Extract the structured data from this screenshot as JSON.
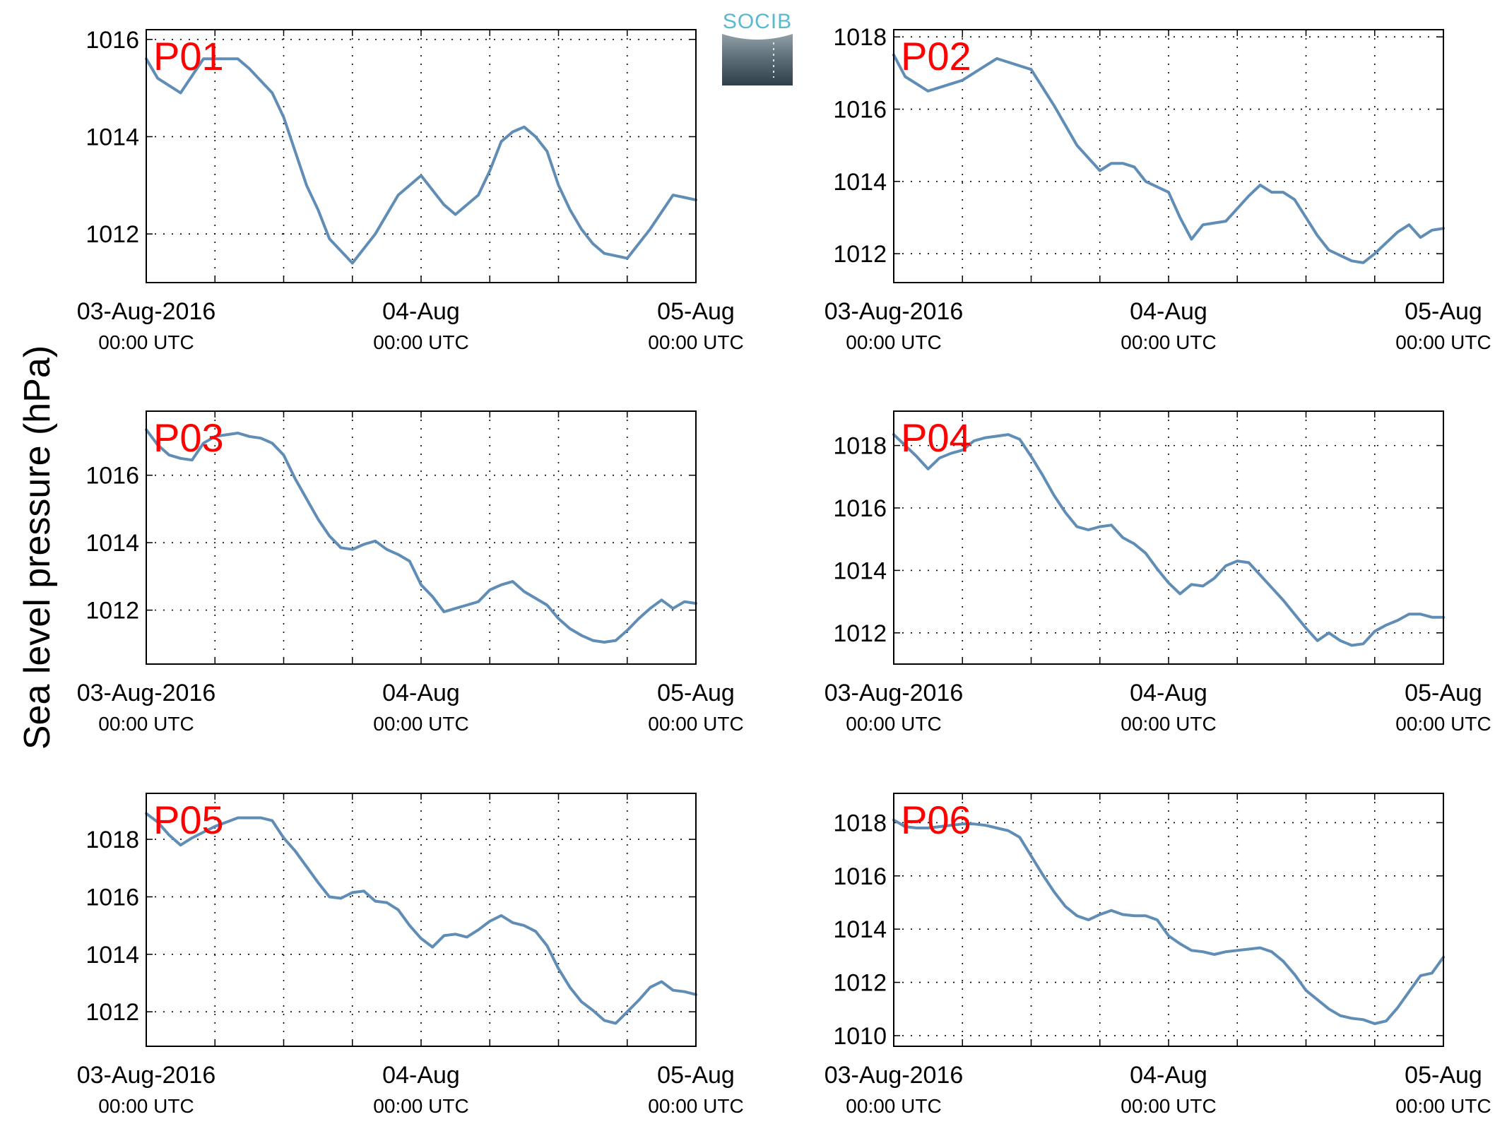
{
  "figure": {
    "ylabel": "Sea level pressure (hPa)",
    "logo_text": "SOCIB",
    "series_color": "#5f8db5",
    "label_color": "#ff0000"
  },
  "chart_data": [
    {
      "type": "line",
      "panel_label": "P01",
      "xlabel": "",
      "ylabel": "Sea level pressure (hPa)",
      "xlim": [
        "03-Aug-2016 00:00",
        "05-Aug-2016 00:00"
      ],
      "ylim": [
        1011,
        1016.2
      ],
      "yticks": [
        1012,
        1014,
        1016
      ],
      "xticks": [
        {
          "date": "03-Aug-2016",
          "time": "00:00 UTC"
        },
        {
          "date": "04-Aug",
          "time": "00:00 UTC"
        },
        {
          "date": "05-Aug",
          "time": "00:00 UTC"
        }
      ],
      "grid": true,
      "x_hours": [
        0,
        1,
        3,
        5,
        6,
        8,
        9,
        11,
        12,
        14,
        15,
        16,
        18,
        20,
        22,
        24,
        26,
        27,
        29,
        30,
        31,
        32,
        33,
        34,
        35,
        36,
        37,
        38,
        39,
        40,
        42,
        44,
        46,
        47,
        48
      ],
      "values": [
        1015.6,
        1015.2,
        1014.9,
        1015.6,
        1015.6,
        1015.6,
        1015.4,
        1014.9,
        1014.4,
        1013.0,
        1012.5,
        1011.9,
        1011.4,
        1012.0,
        1012.8,
        1013.2,
        1012.6,
        1012.4,
        1012.8,
        1013.3,
        1013.9,
        1014.1,
        1014.2,
        1014.0,
        1013.7,
        1013.0,
        1012.5,
        1012.1,
        1011.8,
        1011.6,
        1011.5,
        1012.1,
        1012.8,
        1012.75,
        1012.7
      ]
    },
    {
      "type": "line",
      "panel_label": "P02",
      "xlabel": "",
      "ylabel": "Sea level pressure (hPa)",
      "xlim": [
        "03-Aug-2016 00:00",
        "05-Aug-2016 00:00"
      ],
      "ylim": [
        1011.2,
        1018.2
      ],
      "yticks": [
        1012,
        1014,
        1016,
        1018
      ],
      "xticks": [
        {
          "date": "03-Aug-2016",
          "time": "00:00 UTC"
        },
        {
          "date": "04-Aug",
          "time": "00:00 UTC"
        },
        {
          "date": "05-Aug",
          "time": "00:00 UTC"
        }
      ],
      "grid": true,
      "x_hours": [
        0,
        1,
        3,
        5,
        6,
        8,
        9,
        10,
        12,
        14,
        16,
        18,
        19,
        20,
        21,
        22,
        24,
        25,
        26,
        27,
        28,
        29,
        31,
        32,
        33,
        34,
        35,
        36,
        37,
        38,
        40,
        41,
        42,
        43,
        44,
        45,
        46,
        47,
        48
      ],
      "values": [
        1017.5,
        1016.9,
        1016.5,
        1016.7,
        1016.8,
        1017.2,
        1017.4,
        1017.3,
        1017.1,
        1016.1,
        1015.0,
        1014.3,
        1014.5,
        1014.5,
        1014.4,
        1014.0,
        1013.7,
        1013.0,
        1012.4,
        1012.8,
        1012.85,
        1012.9,
        1013.6,
        1013.9,
        1013.7,
        1013.7,
        1013.5,
        1013.0,
        1012.5,
        1012.1,
        1011.8,
        1011.75,
        1012.0,
        1012.3,
        1012.6,
        1012.8,
        1012.45,
        1012.65,
        1012.7
      ]
    },
    {
      "type": "line",
      "panel_label": "P03",
      "xlabel": "",
      "ylabel": "Sea level pressure (hPa)",
      "xlim": [
        "03-Aug-2016 00:00",
        "05-Aug-2016 00:00"
      ],
      "ylim": [
        1010.4,
        1017.9
      ],
      "yticks": [
        1012,
        1014,
        1016
      ],
      "xticks": [
        {
          "date": "03-Aug-2016",
          "time": "00:00 UTC"
        },
        {
          "date": "04-Aug",
          "time": "00:00 UTC"
        },
        {
          "date": "05-Aug",
          "time": "00:00 UTC"
        }
      ],
      "grid": true,
      "x_hours": [
        0,
        1,
        2,
        3,
        4,
        5,
        6,
        7,
        8,
        9,
        10,
        11,
        12,
        13,
        14,
        15,
        16,
        17,
        18,
        19,
        20,
        21,
        22,
        23,
        24,
        25,
        26,
        27,
        28,
        29,
        30,
        31,
        32,
        33,
        34,
        35,
        36,
        37,
        38,
        39,
        40,
        41,
        42,
        43,
        44,
        45,
        46,
        47,
        48
      ],
      "values": [
        1017.35,
        1016.9,
        1016.6,
        1016.5,
        1016.45,
        1016.95,
        1017.15,
        1017.2,
        1017.25,
        1017.15,
        1017.1,
        1016.95,
        1016.6,
        1015.9,
        1015.3,
        1014.7,
        1014.2,
        1013.85,
        1013.8,
        1013.95,
        1014.05,
        1013.8,
        1013.65,
        1013.45,
        1012.75,
        1012.4,
        1011.95,
        1012.05,
        1012.15,
        1012.25,
        1012.6,
        1012.75,
        1012.85,
        1012.55,
        1012.35,
        1012.15,
        1011.75,
        1011.45,
        1011.25,
        1011.1,
        1011.05,
        1011.1,
        1011.4,
        1011.75,
        1012.05,
        1012.3,
        1012.05,
        1012.25,
        1012.2
      ]
    },
    {
      "type": "line",
      "panel_label": "P04",
      "xlabel": "",
      "ylabel": "Sea level pressure (hPa)",
      "xlim": [
        "03-Aug-2016 00:00",
        "05-Aug-2016 00:00"
      ],
      "ylim": [
        1011,
        1019.1
      ],
      "yticks": [
        1012,
        1014,
        1016,
        1018
      ],
      "xticks": [
        {
          "date": "03-Aug-2016",
          "time": "00:00 UTC"
        },
        {
          "date": "04-Aug",
          "time": "00:00 UTC"
        },
        {
          "date": "05-Aug",
          "time": "00:00 UTC"
        }
      ],
      "grid": true,
      "x_hours": [
        0,
        1,
        2,
        3,
        4,
        5,
        6,
        7,
        8,
        9,
        10,
        11,
        12,
        13,
        14,
        15,
        16,
        17,
        18,
        19,
        20,
        21,
        22,
        23,
        24,
        25,
        26,
        27,
        28,
        29,
        30,
        31,
        32,
        33,
        34,
        35,
        36,
        37,
        38,
        39,
        40,
        41,
        42,
        43,
        44,
        45,
        46,
        47,
        48
      ],
      "values": [
        1018.35,
        1018.0,
        1017.65,
        1017.25,
        1017.6,
        1017.75,
        1017.85,
        1018.15,
        1018.25,
        1018.3,
        1018.35,
        1018.2,
        1017.65,
        1017.05,
        1016.4,
        1015.85,
        1015.4,
        1015.3,
        1015.4,
        1015.45,
        1015.05,
        1014.85,
        1014.55,
        1014.05,
        1013.6,
        1013.25,
        1013.55,
        1013.5,
        1013.75,
        1014.15,
        1014.3,
        1014.25,
        1013.85,
        1013.45,
        1013.05,
        1012.6,
        1012.15,
        1011.75,
        1012.0,
        1011.75,
        1011.6,
        1011.65,
        1012.05,
        1012.25,
        1012.4,
        1012.6,
        1012.6,
        1012.5,
        1012.5
      ]
    },
    {
      "type": "line",
      "panel_label": "P05",
      "xlabel": "",
      "ylabel": "Sea level pressure (hPa)",
      "xlim": [
        "03-Aug-2016 00:00",
        "05-Aug-2016 00:00"
      ],
      "ylim": [
        1010.8,
        1019.6
      ],
      "yticks": [
        1012,
        1014,
        1016,
        1018
      ],
      "xticks": [
        {
          "date": "03-Aug-2016",
          "time": "00:00 UTC"
        },
        {
          "date": "04-Aug",
          "time": "00:00 UTC"
        },
        {
          "date": "05-Aug",
          "time": "00:00 UTC"
        }
      ],
      "grid": true,
      "x_hours": [
        0,
        1,
        2,
        3,
        4,
        5,
        6,
        7,
        8,
        9,
        10,
        11,
        12,
        13,
        14,
        15,
        16,
        17,
        18,
        19,
        20,
        21,
        22,
        23,
        24,
        25,
        26,
        27,
        28,
        29,
        30,
        31,
        32,
        33,
        34,
        35,
        36,
        37,
        38,
        39,
        40,
        41,
        42,
        43,
        44,
        45,
        46,
        47,
        48
      ],
      "values": [
        1018.9,
        1018.6,
        1018.15,
        1017.8,
        1018.05,
        1018.25,
        1018.45,
        1018.6,
        1018.75,
        1018.75,
        1018.75,
        1018.65,
        1018.05,
        1017.6,
        1017.05,
        1016.5,
        1016.0,
        1015.95,
        1016.15,
        1016.2,
        1015.85,
        1015.8,
        1015.55,
        1015.0,
        1014.55,
        1014.25,
        1014.65,
        1014.7,
        1014.6,
        1014.85,
        1015.15,
        1015.35,
        1015.1,
        1015.0,
        1014.8,
        1014.3,
        1013.5,
        1012.85,
        1012.35,
        1012.05,
        1011.7,
        1011.6,
        1012.0,
        1012.4,
        1012.85,
        1013.05,
        1012.75,
        1012.7,
        1012.6
      ]
    },
    {
      "type": "line",
      "panel_label": "P06",
      "xlabel": "",
      "ylabel": "Sea level pressure (hPa)",
      "xlim": [
        "03-Aug-2016 00:00",
        "05-Aug-2016 00:00"
      ],
      "ylim": [
        1009.6,
        1019.1
      ],
      "yticks": [
        1010,
        1012,
        1014,
        1016,
        1018
      ],
      "xticks": [
        {
          "date": "03-Aug-2016",
          "time": "00:00 UTC"
        },
        {
          "date": "04-Aug",
          "time": "00:00 UTC"
        },
        {
          "date": "05-Aug",
          "time": "00:00 UTC"
        }
      ],
      "grid": true,
      "x_hours": [
        0,
        1,
        2,
        3,
        4,
        5,
        6,
        7,
        8,
        9,
        10,
        11,
        12,
        13,
        14,
        15,
        16,
        17,
        18,
        19,
        20,
        21,
        22,
        23,
        24,
        25,
        26,
        27,
        28,
        29,
        30,
        31,
        32,
        33,
        34,
        35,
        36,
        37,
        38,
        39,
        40,
        41,
        42,
        43,
        44,
        45,
        46,
        47,
        48
      ],
      "values": [
        1018.1,
        1017.85,
        1017.8,
        1017.8,
        1017.85,
        1017.9,
        1017.95,
        1017.95,
        1017.9,
        1017.8,
        1017.7,
        1017.45,
        1016.75,
        1016.05,
        1015.4,
        1014.85,
        1014.5,
        1014.35,
        1014.55,
        1014.7,
        1014.55,
        1014.5,
        1014.5,
        1014.35,
        1013.75,
        1013.45,
        1013.2,
        1013.15,
        1013.05,
        1013.15,
        1013.2,
        1013.25,
        1013.3,
        1013.15,
        1012.8,
        1012.3,
        1011.7,
        1011.35,
        1011.0,
        1010.75,
        1010.65,
        1010.6,
        1010.45,
        1010.55,
        1011.05,
        1011.65,
        1012.25,
        1012.35,
        1012.95
      ]
    }
  ]
}
